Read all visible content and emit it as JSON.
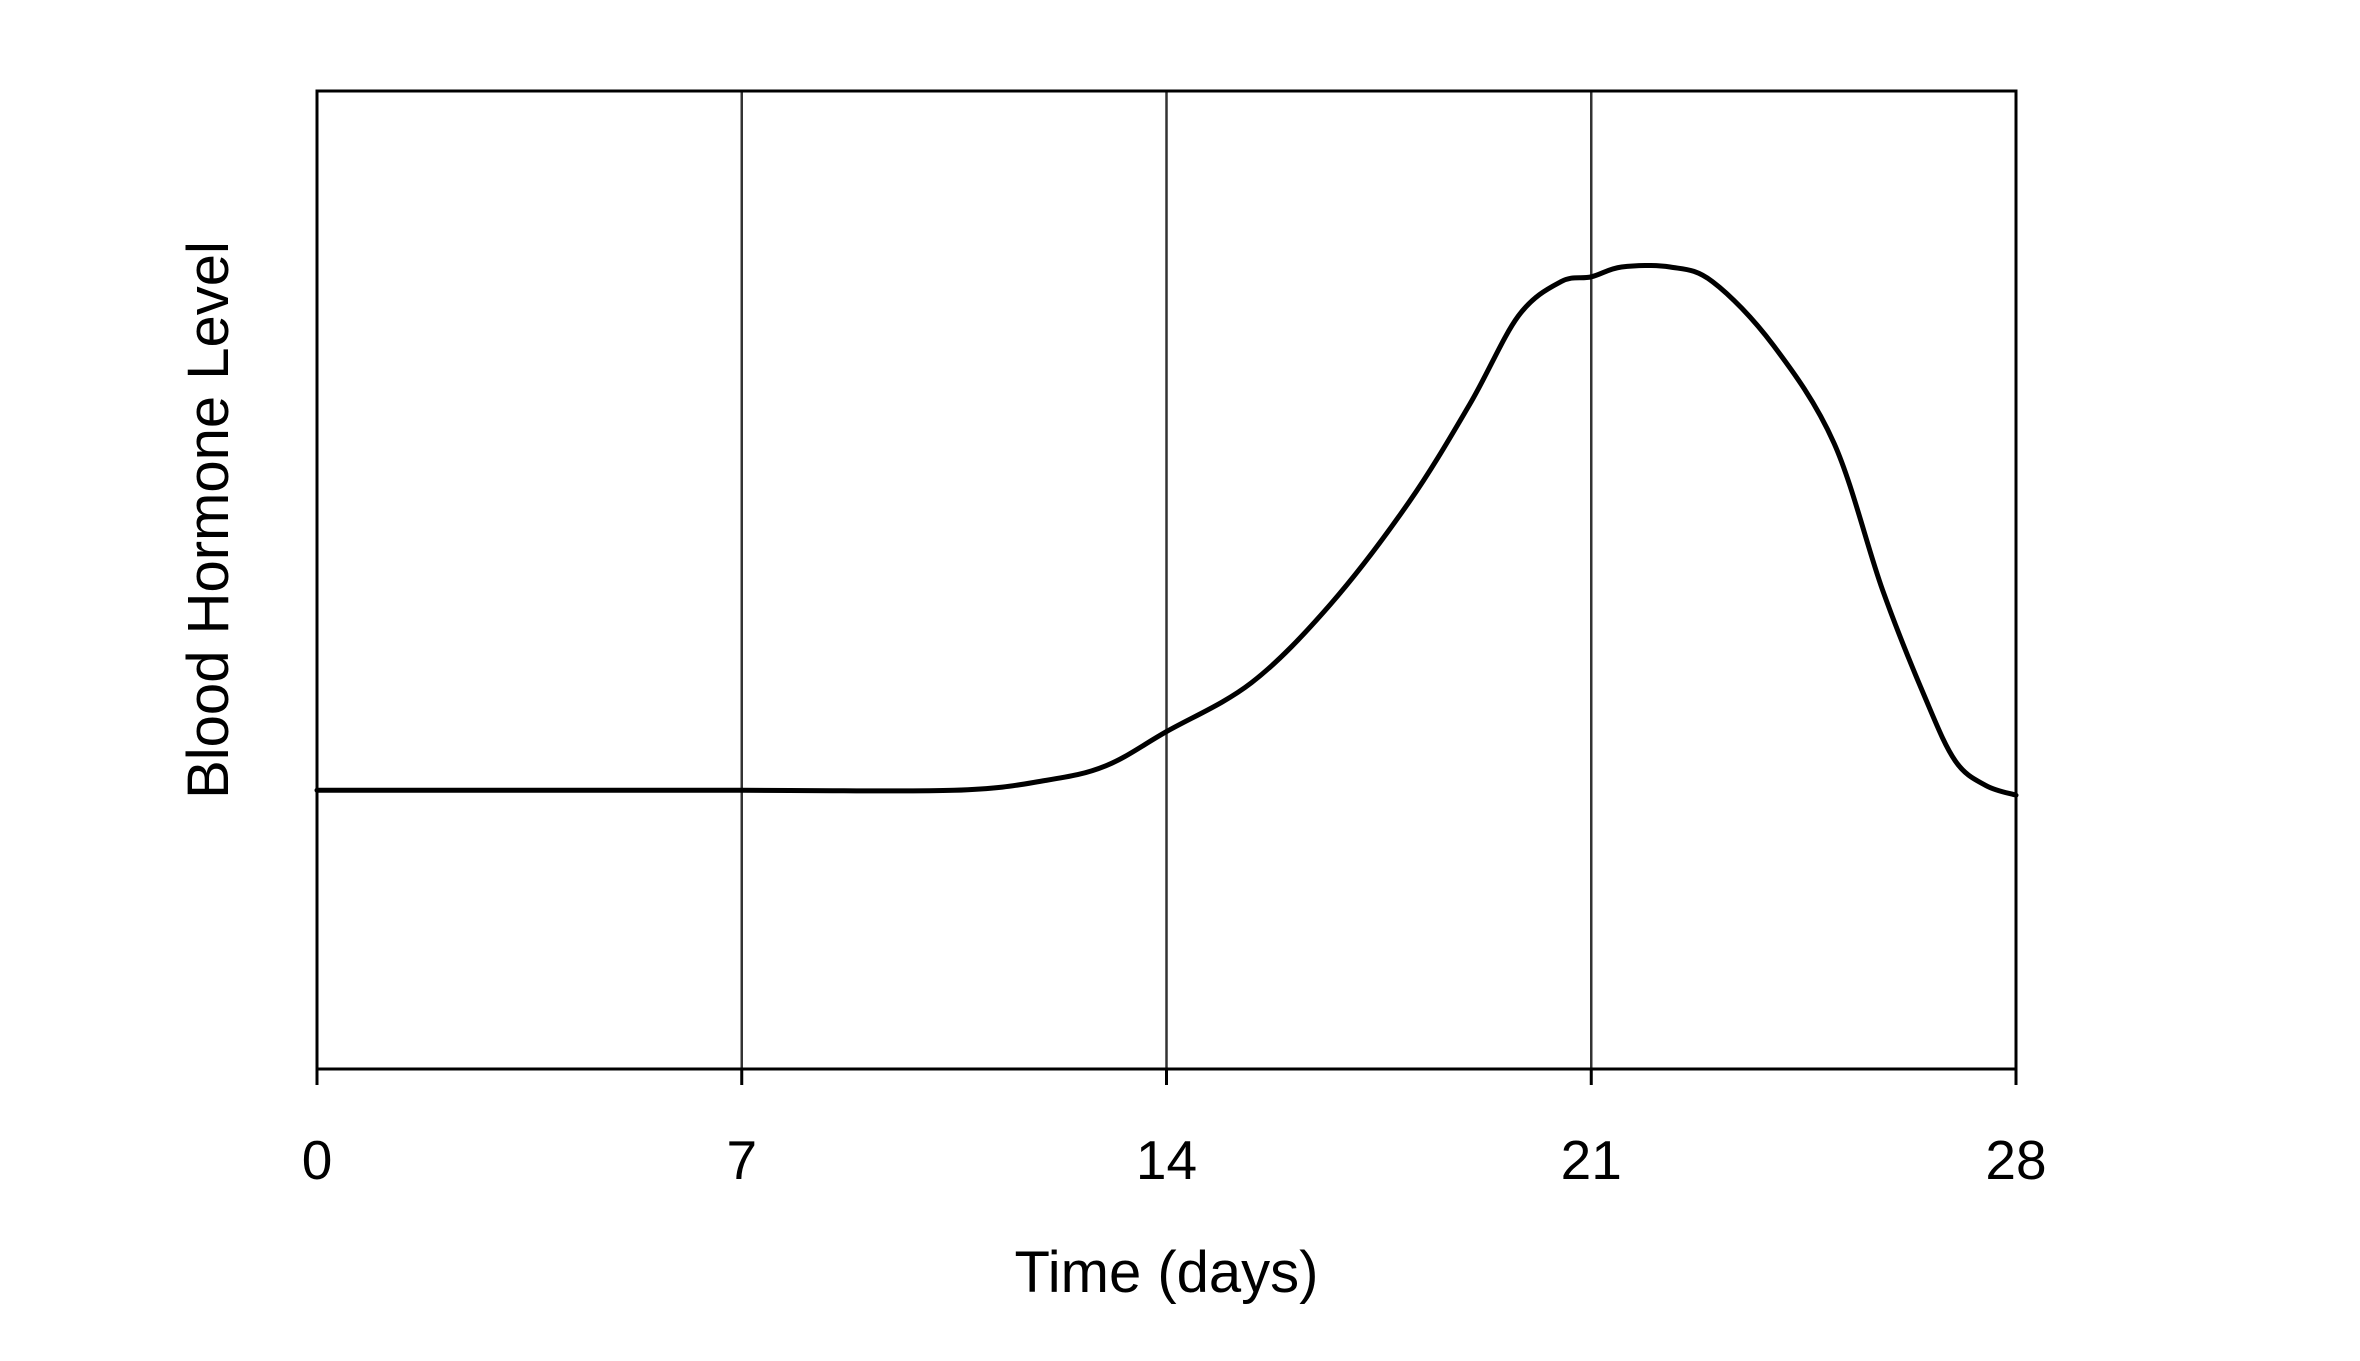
{
  "chart_data": {
    "type": "line",
    "title": "",
    "xlabel": "Time (days)",
    "ylabel": "Blood Hormone Level",
    "xlim": [
      0,
      28
    ],
    "ylim": [
      0,
      1
    ],
    "x_ticks": [
      "0",
      "7",
      "14",
      "21",
      "28"
    ],
    "y_ticks": [],
    "grid": "vertical",
    "legend": "none",
    "colors": {
      "line": "#000000",
      "grid": "#333333",
      "frame": "#000000",
      "background": "#ffffff"
    },
    "series": [
      {
        "values": [
          {
            "x": 0,
            "y": 0.285
          },
          {
            "x": 7,
            "y": 0.285
          },
          {
            "x": 10.5,
            "y": 0.285
          },
          {
            "x": 12,
            "y": 0.295
          },
          {
            "x": 13,
            "y": 0.31
          },
          {
            "x": 14,
            "y": 0.345
          },
          {
            "x": 15.4,
            "y": 0.395
          },
          {
            "x": 16.7,
            "y": 0.475
          },
          {
            "x": 18,
            "y": 0.58
          },
          {
            "x": 19,
            "y": 0.68
          },
          {
            "x": 19.8,
            "y": 0.77
          },
          {
            "x": 20.5,
            "y": 0.805
          },
          {
            "x": 21,
            "y": 0.81
          },
          {
            "x": 21.5,
            "y": 0.82
          },
          {
            "x": 22.3,
            "y": 0.82
          },
          {
            "x": 23,
            "y": 0.805
          },
          {
            "x": 24,
            "y": 0.74
          },
          {
            "x": 25,
            "y": 0.64
          },
          {
            "x": 25.8,
            "y": 0.49
          },
          {
            "x": 26.5,
            "y": 0.38
          },
          {
            "x": 27,
            "y": 0.315
          },
          {
            "x": 27.5,
            "y": 0.29
          },
          {
            "x": 28,
            "y": 0.28
          }
        ]
      }
    ]
  }
}
